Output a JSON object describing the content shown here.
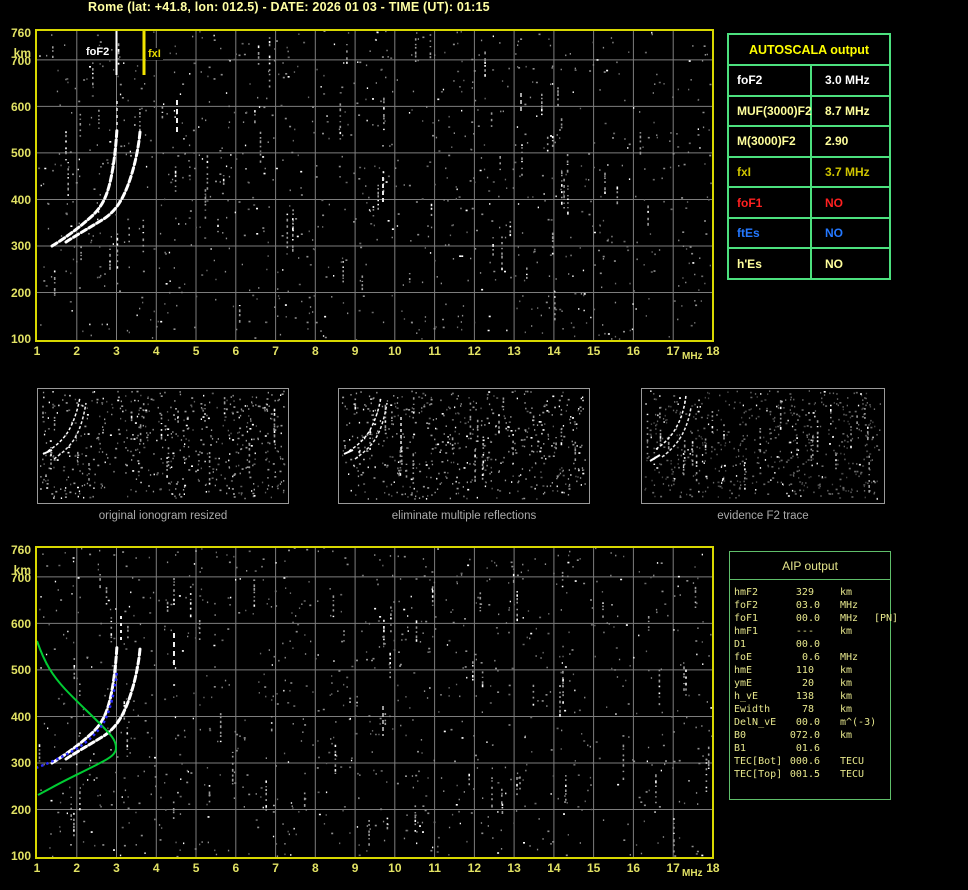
{
  "title": "Rome (lat: +41.8, lon: 012.5) - DATE: 2026 01 03 - TIME (UT): 01:15",
  "axes": {
    "x_ticks": [
      "1",
      "2",
      "3",
      "4",
      "5",
      "6",
      "7",
      "8",
      "9",
      "10",
      "11",
      "12",
      "13",
      "14",
      "15",
      "16",
      "17",
      "18"
    ],
    "x_unit": "MHz",
    "y_ticks": [
      "760",
      "700",
      "600",
      "500",
      "400",
      "300",
      "200",
      "100"
    ],
    "y_unit": "km"
  },
  "top_plot": {
    "fof2_marker_label": "foF2",
    "fxi_marker_label": "fxI"
  },
  "autoscala": {
    "header": "AUTOSCALA output",
    "rows": [
      {
        "param": "foF2",
        "value": "3.0 MHz",
        "style": "color:#ffffff"
      },
      {
        "param": "MUF(3000)F2",
        "value": "8.7 MHz",
        "style": "color:#ffff9c"
      },
      {
        "param": "M(3000)F2",
        "value": "2.90",
        "style": "color:#ffff9c"
      },
      {
        "param": "fxI",
        "value": "3.7 MHz",
        "style": "color:#cfc400"
      },
      {
        "param": "foF1",
        "value": "NO",
        "style": "color:#ff2020"
      },
      {
        "param": "ftEs",
        "value": "NO",
        "style": "color:#2478ff"
      },
      {
        "param": "h'Es",
        "value": "NO",
        "style": "color:#ffff9c"
      }
    ]
  },
  "thumbnails": [
    {
      "caption": "original ionogram resized"
    },
    {
      "caption": "eliminate multiple reflections"
    },
    {
      "caption": "evidence F2 trace"
    }
  ],
  "aip": {
    "header": "AIP output",
    "rows": [
      {
        "param": "hmF2",
        "value": "329 ",
        "unit": "km",
        "note": ""
      },
      {
        "param": "foF2",
        "value": "03.0",
        "unit": "MHz",
        "note": ""
      },
      {
        "param": "foF1",
        "value": "00.0",
        "unit": "MHz",
        "note": "[PN]"
      },
      {
        "param": "hmF1",
        "value": "--- ",
        "unit": "km",
        "note": ""
      },
      {
        "param": "D1",
        "value": "00.0",
        "unit": "",
        "note": ""
      },
      {
        "param": "foE",
        "value": "0.6",
        "unit": "MHz",
        "note": ""
      },
      {
        "param": "hmE",
        "value": "110 ",
        "unit": "km",
        "note": ""
      },
      {
        "param": "ymE",
        "value": "20 ",
        "unit": "km",
        "note": ""
      },
      {
        "param": "h_vE",
        "value": "138 ",
        "unit": "km",
        "note": ""
      },
      {
        "param": "Ewidth",
        "value": "78 ",
        "unit": "km",
        "note": ""
      },
      {
        "param": "DelN_vE",
        "value": "00.0",
        "unit": "m^(-3)",
        "note": ""
      },
      {
        "param": "B0",
        "value": "072.0",
        "unit": "km",
        "note": ""
      },
      {
        "param": "B1",
        "value": "01.6",
        "unit": "",
        "note": ""
      },
      {
        "param": "TEC[Bot]",
        "value": "000.6",
        "unit": "TECU",
        "note": ""
      },
      {
        "param": "TEC[Top]",
        "value": "001.5",
        "unit": "TECU",
        "note": ""
      }
    ]
  },
  "colors": {
    "title_yellow": "#ffffa2",
    "axis_yellow": "#e2e264",
    "plot_border_yellow": "#d8d800",
    "grid_gray": "#7d7d7d",
    "table_green": "#4ce07e",
    "aip_green": "#5fbe6a",
    "aip_text": "#e6e68c",
    "profile_green": "#00cc33",
    "restored_trace_blue": "#2a2aff",
    "echo_trace_white": "#ffffff",
    "fxi_marker_yellow": "#f2e400"
  }
}
